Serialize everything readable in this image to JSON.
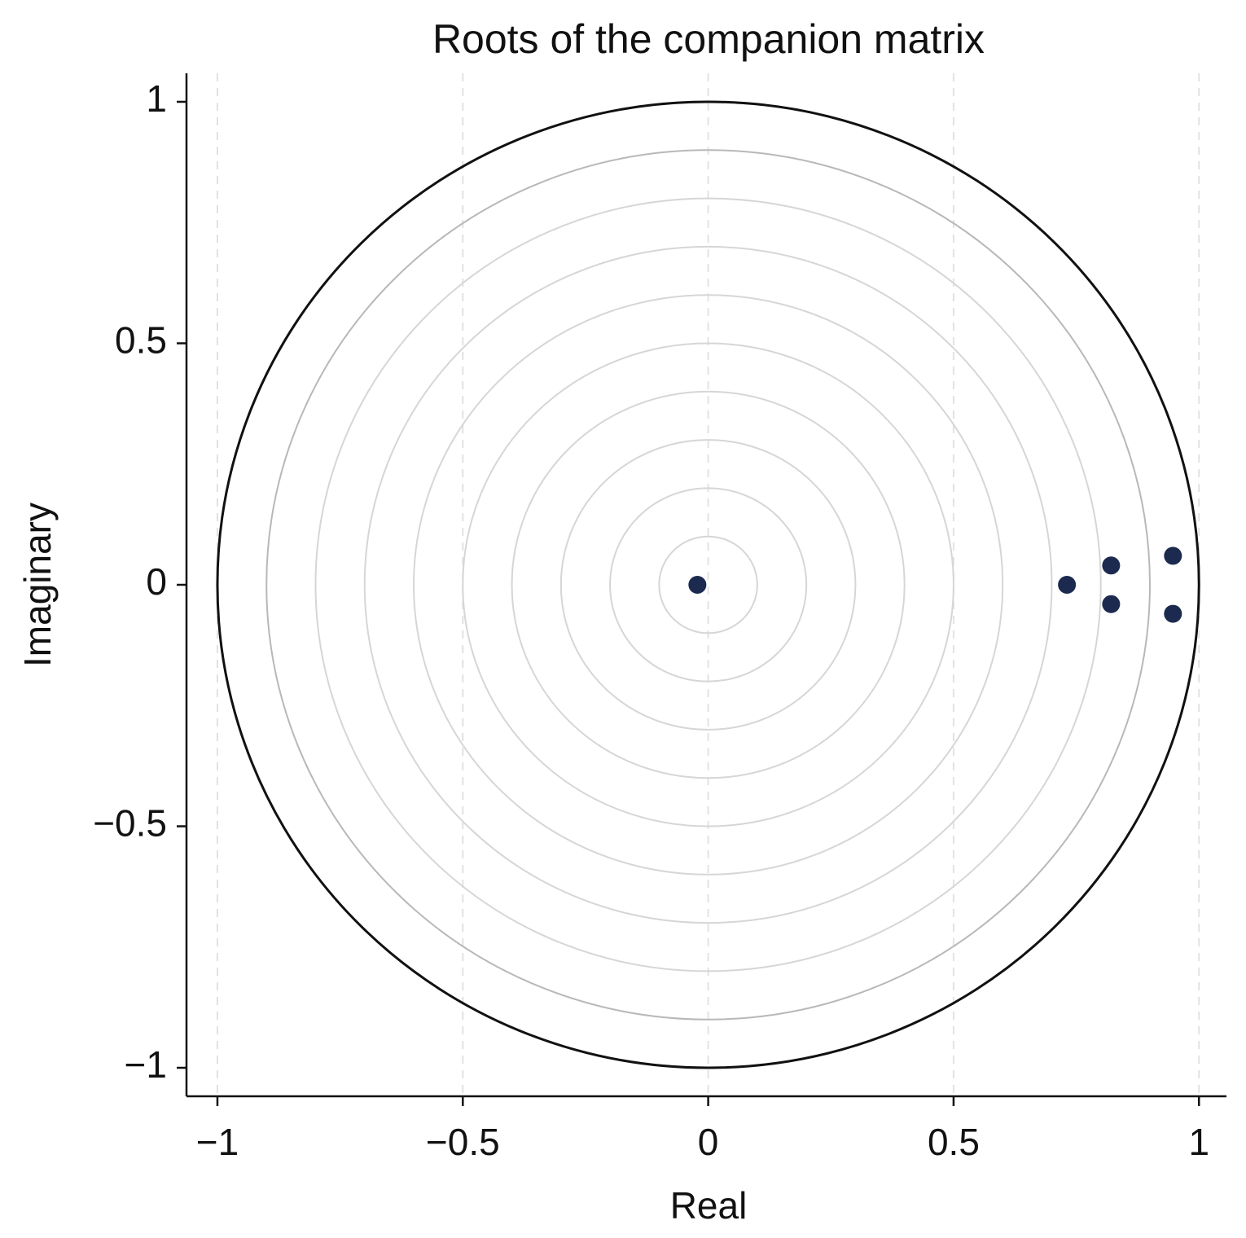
{
  "chart_data": {
    "type": "scatter",
    "title": "Roots of the companion matrix",
    "x_label": "Real",
    "y_label": "Imaginary",
    "x": [
      -0.022,
      0.731,
      0.821,
      0.821,
      0.947,
      0.947
    ],
    "values": [
      0,
      0,
      0.04,
      -0.04,
      0.06,
      -0.06
    ],
    "color": "#1b2a4e",
    "xlim": [
      -1.063,
      1.056
    ],
    "ylim": [
      -1.059,
      1.059
    ],
    "xticks": [
      {
        "value": -1,
        "label": "−1"
      },
      {
        "value": -0.5,
        "label": "−0.5"
      },
      0,
      0.5,
      1
    ],
    "yticks": [
      {
        "value": -1,
        "label": "−1"
      },
      {
        "value": -0.5,
        "label": "−0.5"
      },
      0,
      0.5,
      1
    ],
    "grid": true,
    "unit_circle": true,
    "grid_rings": true
  }
}
